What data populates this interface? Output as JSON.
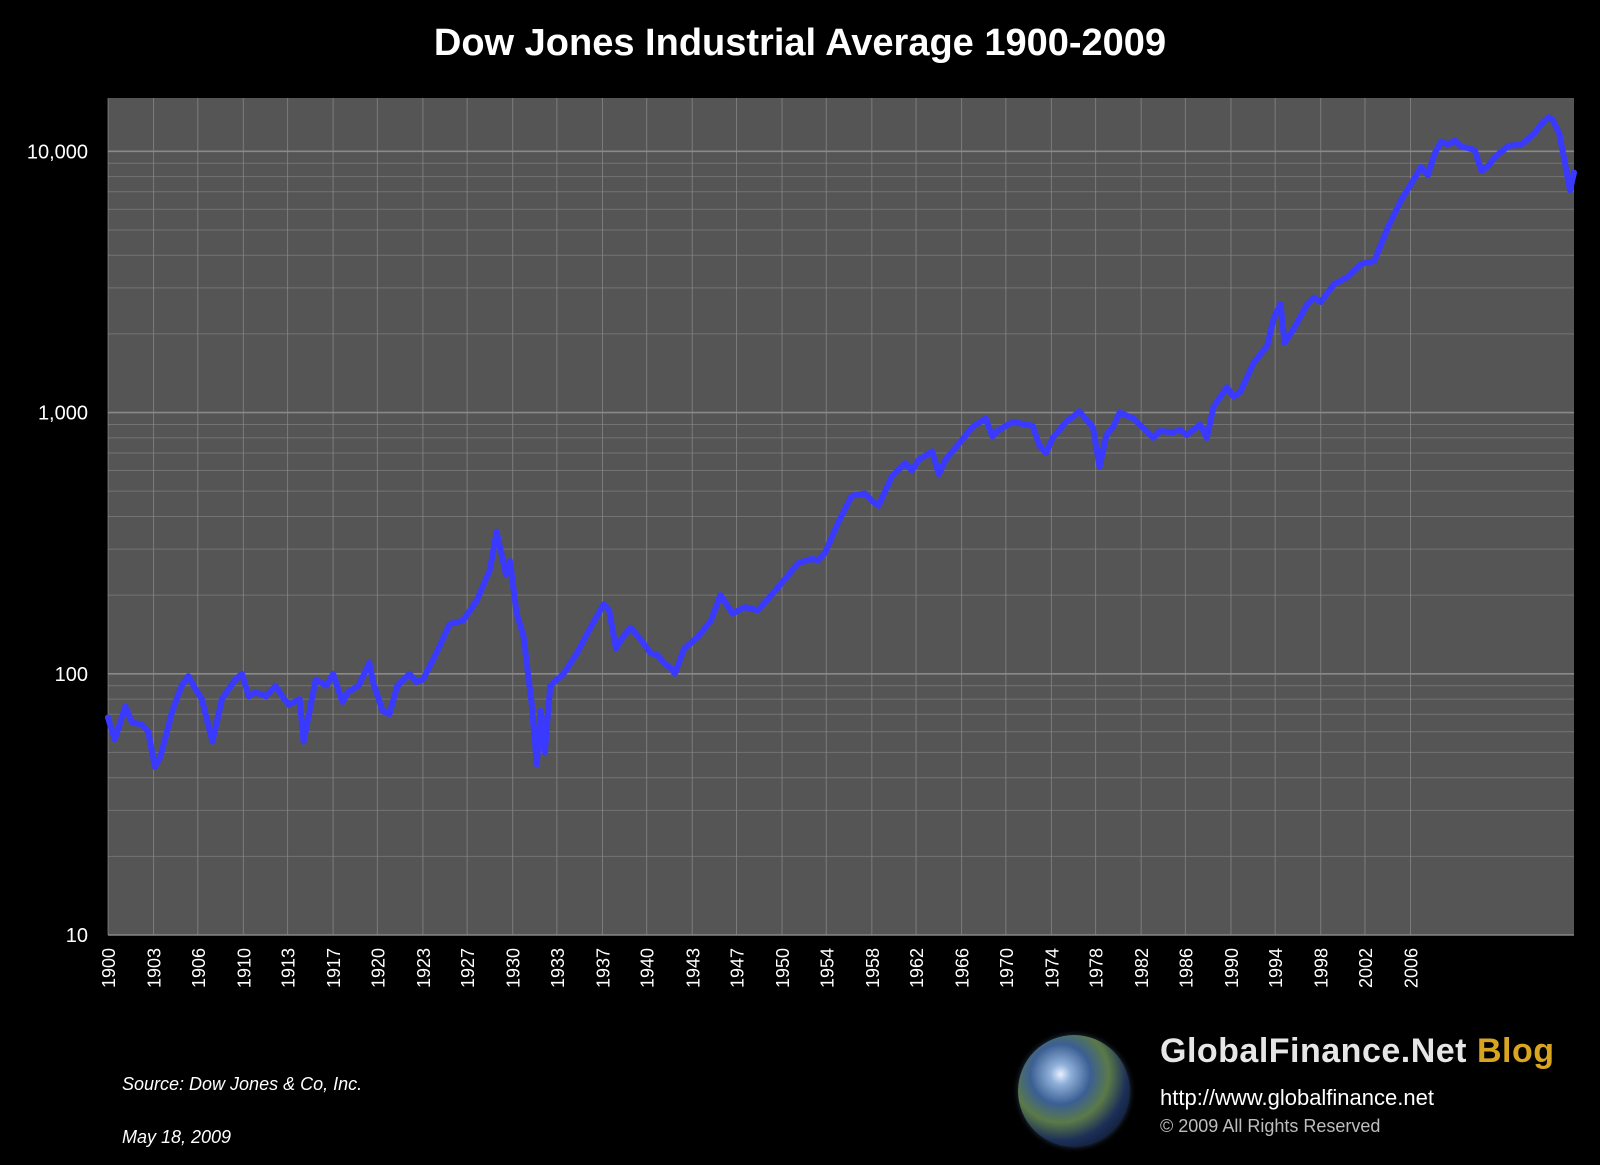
{
  "colors": {
    "background": "#000000",
    "plot_area": "#555555",
    "gridline": "#8c8c8c",
    "series": "#3a3aff",
    "brand_accent": "#d9a521"
  },
  "footer": {
    "source": "Source: Dow Jones & Co, Inc.",
    "date": "May 18, 2009"
  },
  "brand": {
    "name_main": "GlobalFinance.Net",
    "name_accent": "Blog",
    "url": "http://www.globalfinance.net",
    "copyright": "© 2009 All Rights Reserved",
    "logo_icon": "earth-globe-icon"
  },
  "chart_data": {
    "type": "line",
    "title": "Dow Jones Industrial Average 1900-2009",
    "xlabel": "",
    "ylabel": "",
    "y_scale": "log",
    "ylim": [
      10,
      16000
    ],
    "xlim": [
      1900,
      2009.4
    ],
    "grid": true,
    "y_tick_labels": [
      {
        "value": 10,
        "label": "10"
      },
      {
        "value": 100,
        "label": "100"
      },
      {
        "value": 1000,
        "label": "1,000"
      },
      {
        "value": 10000,
        "label": "10,000"
      }
    ],
    "x_tick_labels": [
      {
        "value": 1900.0,
        "label": "1900"
      },
      {
        "value": 1903.4,
        "label": "1903"
      },
      {
        "value": 1906.7,
        "label": "1906"
      },
      {
        "value": 1910.1,
        "label": "1910"
      },
      {
        "value": 1913.4,
        "label": "1913"
      },
      {
        "value": 1916.8,
        "label": "1917"
      },
      {
        "value": 1920.1,
        "label": "1920"
      },
      {
        "value": 1923.5,
        "label": "1923"
      },
      {
        "value": 1926.8,
        "label": "1927"
      },
      {
        "value": 1930.2,
        "label": "1930"
      },
      {
        "value": 1933.5,
        "label": "1933"
      },
      {
        "value": 1936.9,
        "label": "1937"
      },
      {
        "value": 1940.2,
        "label": "1940"
      },
      {
        "value": 1943.6,
        "label": "1943"
      },
      {
        "value": 1946.9,
        "label": "1947"
      },
      {
        "value": 1950.3,
        "label": "1950"
      },
      {
        "value": 1953.6,
        "label": "1954"
      },
      {
        "value": 1957.0,
        "label": "1958"
      },
      {
        "value": 1960.3,
        "label": "1962"
      },
      {
        "value": 1963.7,
        "label": "1966"
      },
      {
        "value": 1967.0,
        "label": "1970"
      },
      {
        "value": 1970.4,
        "label": "1974"
      },
      {
        "value": 1973.7,
        "label": "1978"
      },
      {
        "value": 1977.1,
        "label": "1982"
      },
      {
        "value": 1980.4,
        "label": "1986"
      },
      {
        "value": 1983.8,
        "label": "1990"
      },
      {
        "value": 1987.1,
        "label": "1994"
      },
      {
        "value": 1990.5,
        "label": "1998"
      },
      {
        "value": 1993.8,
        "label": "2002"
      },
      {
        "value": 1997.2,
        "label": "2006"
      }
    ],
    "series": [
      {
        "name": "",
        "x": [
          1900.0,
          1900.5,
          1901.3,
          1901.8,
          1902.5,
          1903.0,
          1903.5,
          1903.9,
          1904.8,
          1905.5,
          1906.0,
          1906.5,
          1907.0,
          1907.8,
          1908.5,
          1909.5,
          1910.0,
          1910.5,
          1911.0,
          1911.8,
          1912.5,
          1913.0,
          1913.5,
          1914.3,
          1914.6,
          1915.5,
          1916.3,
          1916.8,
          1917.5,
          1917.9,
          1918.7,
          1919.5,
          1919.8,
          1920.5,
          1921.0,
          1921.6,
          1922.5,
          1923.0,
          1923.5,
          1924.5,
          1925.5,
          1926.5,
          1927.5,
          1928.5,
          1929.0,
          1929.7,
          1930.0,
          1930.5,
          1931.0,
          1931.6,
          1932.0,
          1932.3,
          1932.6,
          1933.0,
          1934.0,
          1935.0,
          1936.0,
          1937.0,
          1937.4,
          1937.9,
          1938.5,
          1939.0,
          1939.5,
          1940.0,
          1940.5,
          1941.0,
          1941.5,
          1942.0,
          1942.3,
          1943.0,
          1944.0,
          1945.0,
          1945.7,
          1946.0,
          1946.6,
          1947.5,
          1948.5,
          1949.5,
          1950.5,
          1951.5,
          1952.5,
          1953.0,
          1953.5,
          1954.5,
          1955.5,
          1956.5,
          1957.0,
          1957.5,
          1958.5,
          1959.5,
          1960.0,
          1960.5,
          1961.5,
          1962.0,
          1962.5,
          1963.5,
          1964.5,
          1965.5,
          1966.0,
          1966.5,
          1967.5,
          1968.5,
          1969.0,
          1969.5,
          1970.0,
          1970.5,
          1971.5,
          1972.5,
          1973.0,
          1973.5,
          1974.0,
          1974.5,
          1975.0,
          1975.5,
          1976.5,
          1977.5,
          1978.0,
          1978.5,
          1979.5,
          1980.0,
          1980.5,
          1981.5,
          1982.0,
          1982.5,
          1983.5,
          1984.0,
          1984.5,
          1985.5,
          1986.5,
          1987.0,
          1987.5,
          1987.8,
          1988.5,
          1989.5,
          1990.0,
          1990.5,
          1991.5,
          1992.5,
          1993.5,
          1994.5,
          1995.5,
          1996.5,
          1997.5,
          1998.0,
          1998.5,
          1999.0,
          1999.5,
          2000.0,
          2000.5,
          2001.0,
          2001.5,
          2002.0,
          2002.5,
          2003.0,
          2003.5,
          2004.5,
          2005.5,
          2006.5,
          2007.0,
          2007.5,
          2007.8,
          2008.3,
          2008.8,
          2009.1,
          2009.4
        ],
        "values": [
          68,
          56,
          75,
          65,
          64,
          60,
          44,
          48,
          72,
          90,
          98,
          88,
          80,
          55,
          80,
          95,
          100,
          82,
          85,
          82,
          90,
          82,
          76,
          80,
          55,
          95,
          90,
          100,
          78,
          85,
          90,
          110,
          92,
          72,
          70,
          90,
          100,
          93,
          95,
          120,
          155,
          160,
          190,
          250,
          350,
          240,
          270,
          170,
          140,
          78,
          45,
          72,
          50,
          90,
          100,
          120,
          150,
          185,
          175,
          125,
          140,
          150,
          140,
          130,
          120,
          118,
          110,
          105,
          100,
          125,
          138,
          160,
          200,
          190,
          170,
          180,
          175,
          200,
          230,
          265,
          275,
          272,
          290,
          380,
          480,
          490,
          460,
          440,
          570,
          640,
          600,
          660,
          710,
          580,
          660,
          760,
          880,
          950,
          810,
          860,
          920,
          900,
          890,
          750,
          700,
          800,
          920,
          1010,
          940,
          880,
          620,
          820,
          880,
          1000,
          950,
          850,
          800,
          850,
          840,
          860,
          820,
          900,
          800,
          1050,
          1250,
          1150,
          1200,
          1550,
          1800,
          2300,
          2600,
          1850,
          2100,
          2600,
          2750,
          2650,
          3100,
          3300,
          3700,
          3800,
          5100,
          6500,
          7900,
          8700,
          8100,
          9800,
          10900,
          10600,
          11000,
          10400,
          10300,
          10100,
          8400,
          8800,
          9500,
          10500,
          10600,
          11800,
          12800,
          13500,
          13200,
          11700,
          8600,
          7100,
          8300
        ]
      }
    ]
  }
}
